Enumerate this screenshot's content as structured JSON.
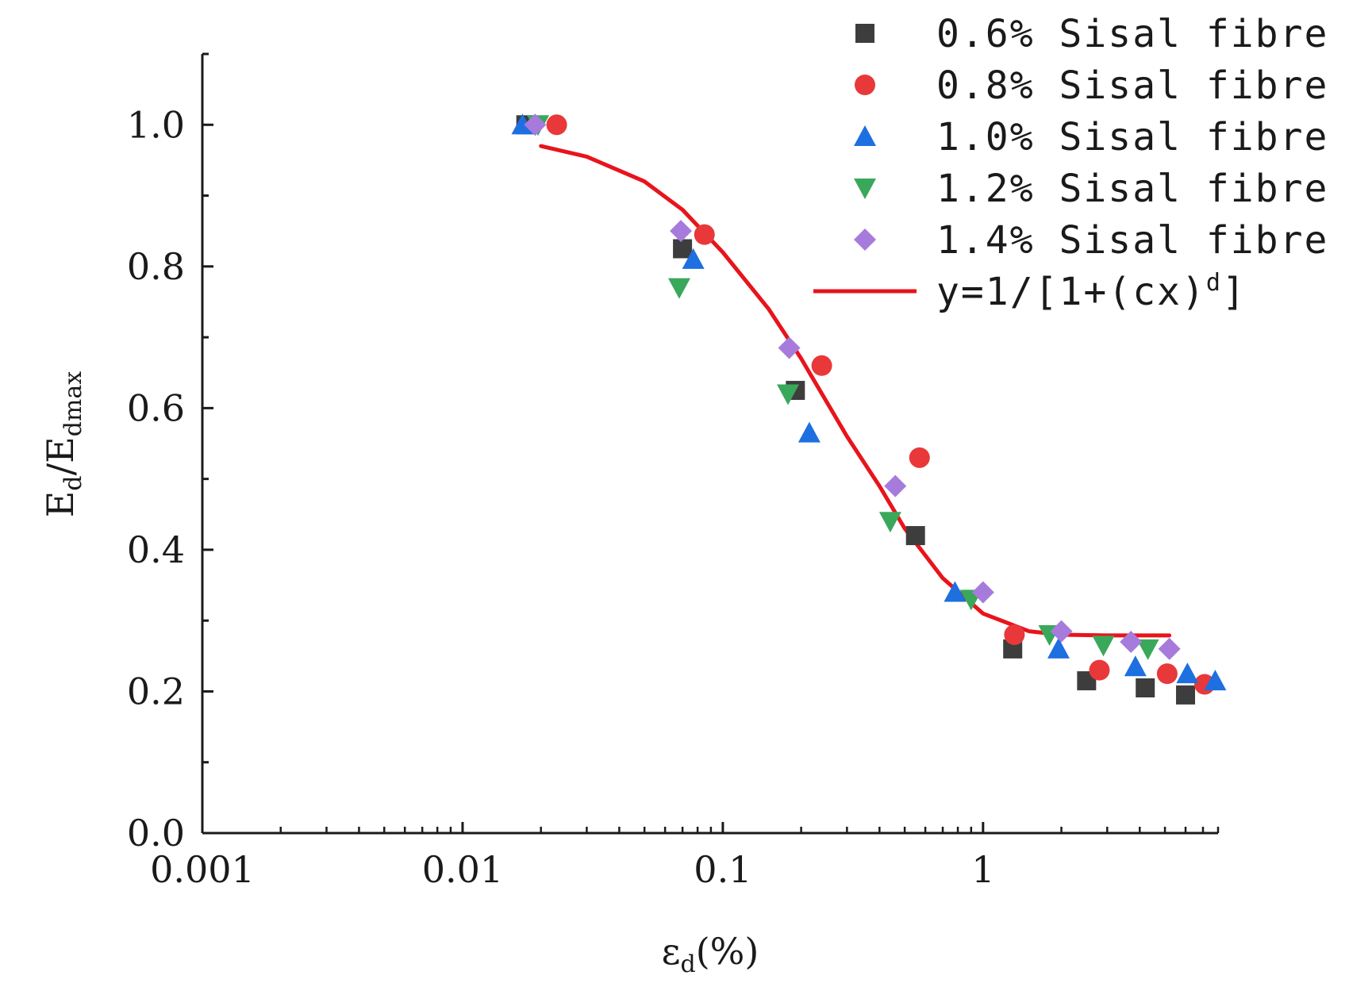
{
  "chart_data": {
    "type": "scatter",
    "xscale": "log",
    "xlim": [
      0.001,
      8
    ],
    "ylim": [
      0,
      1.1
    ],
    "xticks": [
      {
        "value": 0.001,
        "label": "0.001"
      },
      {
        "value": 0.01,
        "label": "0.01"
      },
      {
        "value": 0.1,
        "label": "0.1"
      },
      {
        "value": 1,
        "label": "1"
      }
    ],
    "yticks": [
      {
        "value": 0.0,
        "label": "0.0"
      },
      {
        "value": 0.2,
        "label": "0.2"
      },
      {
        "value": 0.4,
        "label": "0.4"
      },
      {
        "value": 0.6,
        "label": "0.6"
      },
      {
        "value": 0.8,
        "label": "0.8"
      },
      {
        "value": 1.0,
        "label": "1.0"
      }
    ],
    "xlabel": {
      "main": "ε",
      "sub": "d",
      "unit": "(%)"
    },
    "ylabel": {
      "e1": "E",
      "s1": "d",
      "slash": "/",
      "e2": "E",
      "s2": "dmax"
    },
    "legend_position": "top-right",
    "series": [
      {
        "name": "0.6% Sisal fibre",
        "marker": "square",
        "color": "#3d3d3d",
        "x": [
          0.0175,
          0.07,
          0.19,
          0.55,
          1.3,
          2.5,
          4.2,
          6.0
        ],
        "y": [
          1.0,
          0.825,
          0.625,
          0.42,
          0.26,
          0.215,
          0.205,
          0.195
        ]
      },
      {
        "name": "0.8% Sisal fibre",
        "marker": "circle",
        "color": "#e8383a",
        "x": [
          0.023,
          0.085,
          0.24,
          0.57,
          1.32,
          2.8,
          5.1,
          7.1
        ],
        "y": [
          1.0,
          0.845,
          0.66,
          0.53,
          0.28,
          0.23,
          0.225,
          0.21
        ],
        "fit_of_series": true
      },
      {
        "name": "1.0% Sisal fibre",
        "marker": "triangle-up",
        "color": "#1e6fe0",
        "x": [
          0.017,
          0.077,
          0.215,
          0.78,
          1.95,
          3.85,
          6.1,
          7.8
        ],
        "y": [
          1.0,
          0.81,
          0.565,
          0.34,
          0.26,
          0.235,
          0.225,
          0.215
        ]
      },
      {
        "name": "1.2% Sisal fibre",
        "marker": "triangle-down",
        "color": "#3aa85b",
        "x": [
          0.0195,
          0.068,
          0.178,
          0.44,
          0.9,
          1.8,
          2.9,
          4.3
        ],
        "y": [
          1.0,
          0.77,
          0.62,
          0.44,
          0.33,
          0.28,
          0.265,
          0.26
        ]
      },
      {
        "name": "1.4% Sisal fibre",
        "marker": "diamond",
        "color": "#a77bdc",
        "x": [
          0.019,
          0.069,
          0.18,
          0.46,
          1.0,
          2.0,
          3.7,
          5.2
        ],
        "y": [
          1.0,
          0.85,
          0.685,
          0.49,
          0.34,
          0.285,
          0.27,
          0.26
        ]
      }
    ],
    "fit": {
      "label": "y=1/[1+(cx)",
      "label_sup": "d",
      "label_end": "]",
      "color": "#e8141b",
      "x_range": [
        0.02,
        5.2
      ],
      "points": [
        {
          "x": 0.02,
          "y": 0.97
        },
        {
          "x": 0.03,
          "y": 0.955
        },
        {
          "x": 0.05,
          "y": 0.92
        },
        {
          "x": 0.07,
          "y": 0.88
        },
        {
          "x": 0.1,
          "y": 0.82
        },
        {
          "x": 0.15,
          "y": 0.74
        },
        {
          "x": 0.2,
          "y": 0.67
        },
        {
          "x": 0.3,
          "y": 0.56
        },
        {
          "x": 0.4,
          "y": 0.49
        },
        {
          "x": 0.5,
          "y": 0.43
        },
        {
          "x": 0.7,
          "y": 0.36
        },
        {
          "x": 1.0,
          "y": 0.31
        },
        {
          "x": 1.5,
          "y": 0.285
        },
        {
          "x": 2.0,
          "y": 0.28
        },
        {
          "x": 3.0,
          "y": 0.279
        },
        {
          "x": 5.2,
          "y": 0.279
        }
      ]
    }
  }
}
